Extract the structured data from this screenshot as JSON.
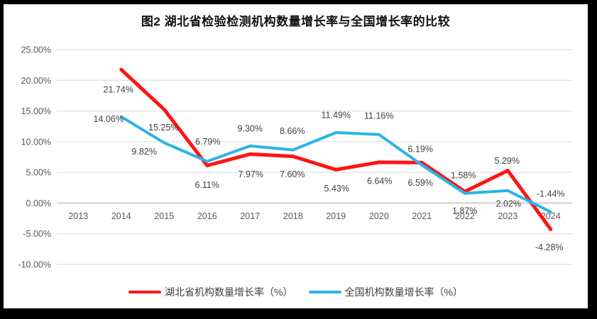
{
  "title": "图2 湖北省检验检测机构数量增长率与全国增长率的比较",
  "legend": [
    {
      "label": "湖北省机构数量增长率（%）",
      "color": "#fe1414"
    },
    {
      "label": "全国机构数量增长率（%）",
      "color": "#2ab3e8"
    }
  ],
  "colors": {
    "hubei_line": "#fe1414",
    "national_line": "#2ab3e8",
    "gridline": "#d9d9d9",
    "axis_line": "#bfbfbf",
    "tick_text": "#595959",
    "data_label_text": "#3f3f3f",
    "frame": "#000000"
  },
  "chart_data": {
    "type": "line",
    "title": "图2 湖北省检验检测机构数量增长率与全国增长率的比较",
    "categories": [
      "2013",
      "2014",
      "2015",
      "2016",
      "2017",
      "2018",
      "2019",
      "2020",
      "2021",
      "2022",
      "2023",
      "2024"
    ],
    "series": [
      {
        "name": "湖北省机构数量增长率（%）",
        "color": "#fe1414",
        "values": [
          null,
          21.74,
          15.25,
          6.11,
          7.97,
          7.6,
          5.43,
          6.64,
          6.59,
          1.87,
          5.29,
          -4.28
        ]
      },
      {
        "name": "全国机构数量增长率（%）",
        "color": "#2ab3e8",
        "values": [
          null,
          14.06,
          9.82,
          6.79,
          9.3,
          8.66,
          11.49,
          11.16,
          6.19,
          1.58,
          2.02,
          -1.44
        ]
      }
    ],
    "ylim": [
      -10,
      25
    ],
    "ytick_values": [
      25,
      20,
      15,
      10,
      5,
      0,
      -5,
      -10
    ],
    "ytick_labels": [
      "25.00%",
      "20.00%",
      "15.00%",
      "10.00%",
      "5.00%",
      "0.00%",
      "-5.00%",
      "-10.00%"
    ],
    "data_label_format": "0.00%",
    "grid": true,
    "legend_position": "bottom",
    "xlabel": "",
    "ylabel": ""
  }
}
